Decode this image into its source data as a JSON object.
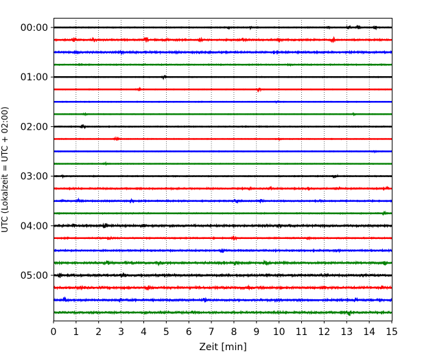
{
  "chart_data": {
    "type": "line",
    "title": "",
    "xlabel": "Zeit  [min]",
    "ylabel": "UTC (Lokalzeit = UTC + 02:00)",
    "xlim": [
      0,
      15
    ],
    "x_ticks": [
      "0",
      "1",
      "2",
      "3",
      "4",
      "5",
      "6",
      "7",
      "8",
      "9",
      "10",
      "11",
      "12",
      "13",
      "14",
      "15"
    ],
    "y_ticks": [
      "00:00",
      "01:00",
      "02:00",
      "03:00",
      "04:00",
      "05:00"
    ],
    "y_tick_rows": [
      0,
      4,
      8,
      12,
      16,
      20
    ],
    "grid": "vertical dotted lines at each minute",
    "row_minutes": 15,
    "color_cycle": [
      "#000000",
      "#ff0000",
      "#0000ff",
      "#008000"
    ],
    "rows": [
      {
        "start": "00:00",
        "amplitude": 0.6,
        "events": [
          [
            7.8,
            1.0
          ],
          [
            8.7,
            1.8
          ],
          [
            12.2,
            1.0
          ],
          [
            13.1,
            2.2
          ],
          [
            13.5,
            2.6
          ],
          [
            14.3,
            2.0
          ]
        ]
      },
      {
        "start": "00:15",
        "amplitude": 1.0,
        "events": [
          [
            0.9,
            2.6
          ],
          [
            1.8,
            2.4
          ],
          [
            4.1,
            3.0
          ],
          [
            5.0,
            1.6
          ],
          [
            6.5,
            2.0
          ],
          [
            8.4,
            1.6
          ],
          [
            10.0,
            2.6
          ],
          [
            12.4,
            2.8
          ]
        ]
      },
      {
        "start": "00:30",
        "amplitude": 1.1,
        "events": [
          [
            1.0,
            2.0
          ],
          [
            3.0,
            1.4
          ],
          [
            6.5,
            1.4
          ],
          [
            9.8,
            1.4
          ]
        ]
      },
      {
        "start": "00:45",
        "amplitude": 0.7,
        "events": [
          [
            4.0,
            1.0
          ],
          [
            10.5,
            1.0
          ]
        ]
      },
      {
        "start": "01:00",
        "amplitude": 0.5,
        "events": [
          [
            4.9,
            2.2
          ]
        ]
      },
      {
        "start": "01:15",
        "amplitude": 0.5,
        "events": [
          [
            3.8,
            2.0
          ],
          [
            9.1,
            2.6
          ]
        ]
      },
      {
        "start": "01:30",
        "amplitude": 0.5,
        "events": [
          [
            9.9,
            0.9
          ]
        ]
      },
      {
        "start": "01:45",
        "amplitude": 0.5,
        "events": [
          [
            1.4,
            1.0
          ],
          [
            7.9,
            0.8
          ],
          [
            13.3,
            1.0
          ]
        ]
      },
      {
        "start": "02:00",
        "amplitude": 0.6,
        "events": [
          [
            1.3,
            3.2
          ]
        ]
      },
      {
        "start": "02:15",
        "amplitude": 0.5,
        "events": [
          [
            2.8,
            2.6
          ],
          [
            10.0,
            1.0
          ]
        ]
      },
      {
        "start": "02:30",
        "amplitude": 0.5,
        "events": [
          [
            14.2,
            0.9
          ]
        ]
      },
      {
        "start": "02:45",
        "amplitude": 0.5,
        "events": [
          [
            2.3,
            1.2
          ]
        ]
      },
      {
        "start": "03:00",
        "amplitude": 0.6,
        "events": [
          [
            0.4,
            0.8
          ],
          [
            12.5,
            2.8
          ]
        ]
      },
      {
        "start": "03:15",
        "amplitude": 0.9,
        "events": [
          [
            8.7,
            1.8
          ],
          [
            9.6,
            2.0
          ],
          [
            11.3,
            2.0
          ],
          [
            12.6,
            1.6
          ],
          [
            14.8,
            1.6
          ]
        ]
      },
      {
        "start": "03:30",
        "amplitude": 0.9,
        "events": [
          [
            0.4,
            1.6
          ],
          [
            1.1,
            1.8
          ],
          [
            3.5,
            2.0
          ],
          [
            8.1,
            2.4
          ],
          [
            9.2,
            2.0
          ],
          [
            11.8,
            1.4
          ]
        ]
      },
      {
        "start": "03:45",
        "amplitude": 0.7,
        "events": [
          [
            14.7,
            1.4
          ]
        ]
      },
      {
        "start": "04:00",
        "amplitude": 1.2,
        "events": [
          [
            0.3,
            1.4
          ],
          [
            0.9,
            1.4
          ],
          [
            2.3,
            2.8
          ],
          [
            4.0,
            1.4
          ],
          [
            10.0,
            1.4
          ]
        ]
      },
      {
        "start": "04:15",
        "amplitude": 0.8,
        "events": [
          [
            2.5,
            2.0
          ],
          [
            8.0,
            2.2
          ],
          [
            11.3,
            1.2
          ]
        ]
      },
      {
        "start": "04:30",
        "amplitude": 1.0,
        "events": [
          [
            7.5,
            2.2
          ],
          [
            12.6,
            2.0
          ]
        ]
      },
      {
        "start": "04:45",
        "amplitude": 1.2,
        "events": [
          [
            2.4,
            2.0
          ],
          [
            4.7,
            2.6
          ],
          [
            8.1,
            2.8
          ],
          [
            9.4,
            2.0
          ],
          [
            14.7,
            2.6
          ]
        ]
      },
      {
        "start": "05:00",
        "amplitude": 1.3,
        "events": [
          [
            0.3,
            2.6
          ],
          [
            3.1,
            3.0
          ],
          [
            6.5,
            1.8
          ],
          [
            9.5,
            1.4
          ]
        ]
      },
      {
        "start": "05:15",
        "amplitude": 1.3,
        "events": [
          [
            1.3,
            1.6
          ],
          [
            4.2,
            2.6
          ],
          [
            8.7,
            1.8
          ],
          [
            12.0,
            1.8
          ],
          [
            14.6,
            1.6
          ]
        ]
      },
      {
        "start": "05:30",
        "amplitude": 1.2,
        "events": [
          [
            0.5,
            2.2
          ],
          [
            3.0,
            1.6
          ],
          [
            6.7,
            1.8
          ],
          [
            10.0,
            1.6
          ],
          [
            13.4,
            1.8
          ]
        ]
      },
      {
        "start": "05:45",
        "amplitude": 1.2,
        "events": [
          [
            2.0,
            1.4
          ],
          [
            6.2,
            1.4
          ],
          [
            13.1,
            3.0
          ]
        ]
      }
    ]
  }
}
